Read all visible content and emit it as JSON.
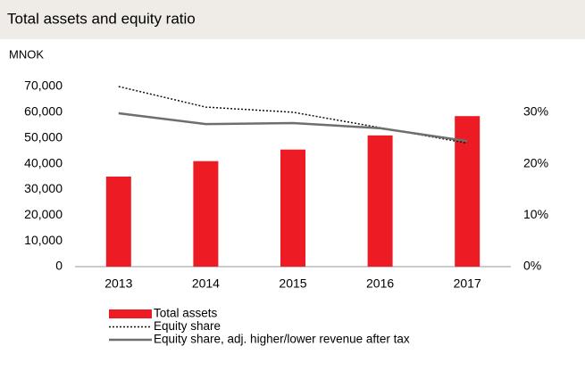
{
  "chart_data": {
    "type": "bar",
    "title": "Total assets and equity ratio",
    "y_label": "MNOK",
    "categories": [
      "2013",
      "2014",
      "2015",
      "2016",
      "2017"
    ],
    "series": [
      {
        "name": "Total assets",
        "type": "bar",
        "color": "#ed1c24",
        "values": [
          35000,
          41000,
          45500,
          51000,
          58500
        ]
      },
      {
        "name": "Equity share",
        "type": "line",
        "line_style": "dotted",
        "axis": "y2",
        "color": "#111111",
        "values": [
          35,
          31,
          30,
          27,
          24
        ]
      },
      {
        "name": "Equity share, adj. higher/lower revenue after tax",
        "type": "line",
        "line_style": "solid",
        "axis": "y2",
        "color": "#6e6e6e",
        "values": [
          29.8,
          27.7,
          27.9,
          26.9,
          24.4
        ]
      }
    ],
    "ylim": [
      0,
      70000
    ],
    "yticks": [
      0,
      {
        "value": 10000,
        "label": "10,000"
      },
      {
        "value": 20000,
        "label": "20,000"
      },
      {
        "value": 30000,
        "label": "30,000"
      },
      {
        "value": 40000,
        "label": "40,000"
      },
      {
        "value": 50000,
        "label": "50,000"
      },
      {
        "value": 60000,
        "label": "60,000"
      },
      {
        "value": 70000,
        "label": "70,000"
      }
    ],
    "y2lim": [
      0,
      35
    ],
    "y2ticks": [
      {
        "value": 0,
        "label": "0%"
      },
      {
        "value": 10,
        "label": "10%"
      },
      {
        "value": 20,
        "label": "20%"
      },
      {
        "value": 30,
        "label": "30%"
      }
    ],
    "grid": false,
    "legend": "bottom"
  }
}
